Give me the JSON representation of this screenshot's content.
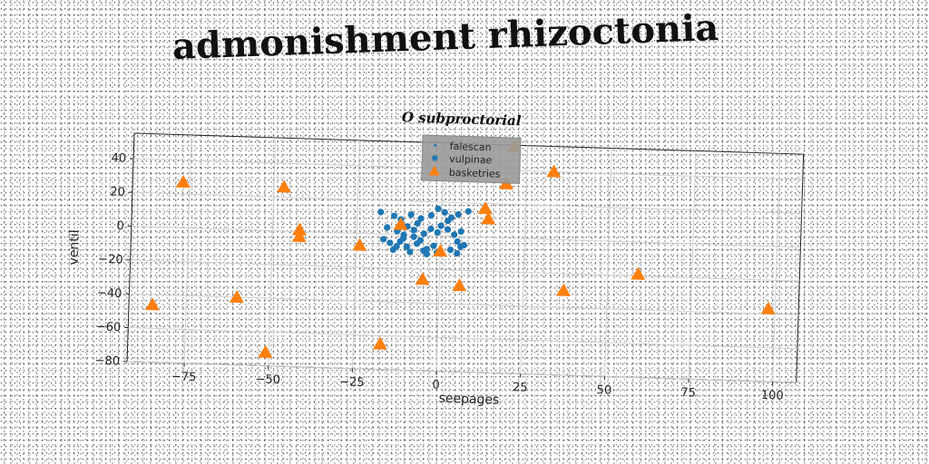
{
  "figure": {
    "main_title": "admonishment rhizoctonia"
  },
  "chart_data": {
    "type": "scatter",
    "title": "O subproctorial",
    "xlabel": "seepages",
    "ylabel": "ventil",
    "xlim": [
      -92,
      107
    ],
    "ylim": [
      -80,
      55
    ],
    "xticks": [
      -75,
      -50,
      -25,
      0,
      25,
      50,
      75,
      100
    ],
    "yticks": [
      -80,
      -60,
      -40,
      -20,
      0,
      20,
      40
    ],
    "grid": true,
    "legend_position": "top-center",
    "legend": [
      "falescan",
      "vulpinae",
      "basketries"
    ],
    "series": [
      {
        "name": "falescan",
        "marker": "dot",
        "color": "#1f77b4",
        "points": []
      },
      {
        "name": "vulpinae",
        "marker": "circle",
        "color": "#1f77b4",
        "points": [
          [
            -18,
            13
          ],
          [
            -14,
            11
          ],
          [
            -12,
            9
          ],
          [
            -9,
            12
          ],
          [
            -6,
            10
          ],
          [
            -3,
            12
          ],
          [
            -1,
            16
          ],
          [
            1,
            14
          ],
          [
            3,
            11
          ],
          [
            5,
            13
          ],
          [
            8,
            15
          ],
          [
            -16,
            4
          ],
          [
            -13,
            2
          ],
          [
            -11,
            0
          ],
          [
            -8,
            3
          ],
          [
            -5,
            1
          ],
          [
            -3,
            4
          ],
          [
            0,
            6
          ],
          [
            2,
            4
          ],
          [
            -17,
            -3
          ],
          [
            -15,
            -5
          ],
          [
            -12,
            -4
          ],
          [
            -10,
            -7
          ],
          [
            -7,
            -5
          ],
          [
            -4,
            -8
          ],
          [
            -2,
            -6
          ],
          [
            -14,
            -9
          ],
          [
            -9,
            -10
          ],
          [
            -5,
            -9
          ],
          [
            -1,
            -10
          ],
          [
            4,
            1
          ],
          [
            5,
            -3
          ],
          [
            6,
            -6
          ],
          [
            5,
            -10
          ],
          [
            7,
            -5
          ],
          [
            -11,
            -2
          ],
          [
            -6,
            -3
          ],
          [
            2,
            9
          ],
          [
            -7,
            7
          ],
          [
            -10,
            5
          ],
          [
            -1,
            2
          ],
          [
            6,
            3
          ],
          [
            -13,
            -7
          ],
          [
            -8,
            -1
          ],
          [
            3,
            -8
          ],
          [
            -4,
            -11
          ]
        ]
      },
      {
        "name": "basketries",
        "marker": "triangle",
        "color": "#ff7f0e",
        "points": [
          [
            -77,
            27
          ],
          [
            -47,
            26
          ],
          [
            -42,
            1
          ],
          [
            -42,
            -3
          ],
          [
            -24,
            -7
          ],
          [
            -85,
            -46
          ],
          [
            -60,
            -40
          ],
          [
            -51,
            -72
          ],
          [
            -17,
            -65
          ],
          [
            -12,
            6
          ],
          [
            -5,
            -26
          ],
          [
            0,
            -9
          ],
          [
            6,
            -29
          ],
          [
            13,
            17
          ],
          [
            14,
            11
          ],
          [
            19,
            32
          ],
          [
            21,
            54
          ],
          [
            33,
            40
          ],
          [
            37,
            -30
          ],
          [
            59,
            -19
          ],
          [
            98,
            -37
          ]
        ]
      }
    ]
  }
}
